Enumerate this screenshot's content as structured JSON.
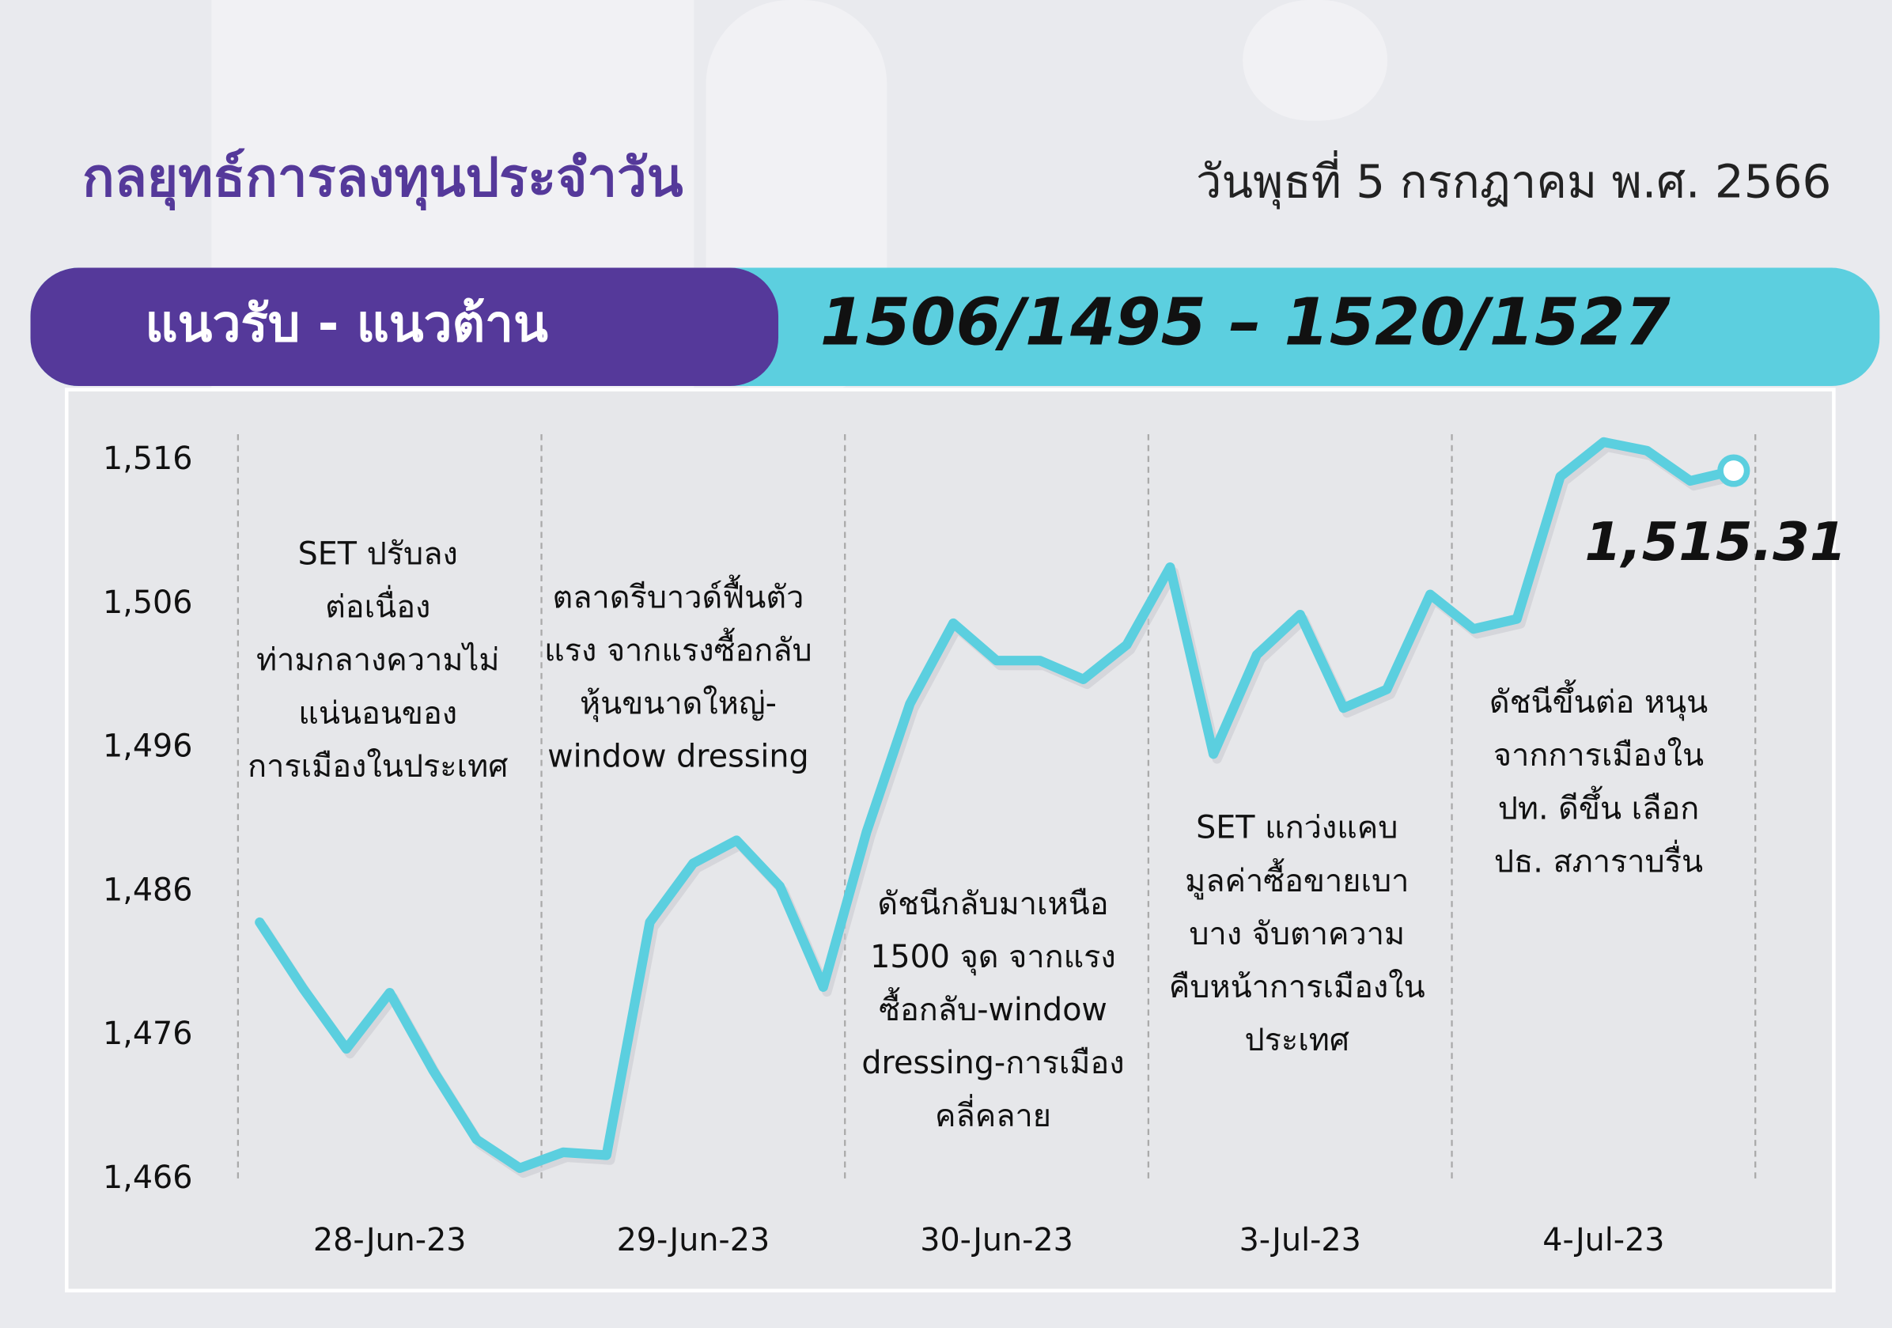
{
  "header": {
    "title": "กลยุทธ์การลงทุนประจำวัน",
    "date": "วันพุธที่ 5 กรกฎาคม พ.ศ. 2566",
    "banner_label": "แนวรับ - แนวต้าน",
    "banner_value": "1506/1495 – 1520/1527"
  },
  "chart_data": {
    "type": "line",
    "color": "#5bcfdf",
    "categories": [
      null,
      null,
      null,
      "28-Jun-23",
      null,
      null,
      null,
      null,
      null,
      null,
      "29-Jun-23",
      null,
      null,
      null,
      null,
      null,
      null,
      "30-Jun-23",
      null,
      null,
      null,
      null,
      null,
      null,
      "3-Jul-23",
      null,
      null,
      null,
      null,
      null,
      null,
      "4-Jul-23",
      null,
      null,
      null
    ],
    "values": [
      1483.9,
      1479.3,
      1475.1,
      1479.0,
      1473.6,
      1468.8,
      1466.8,
      1467.9,
      1467.7,
      1483.9,
      1488.0,
      1489.6,
      1486.4,
      1479.4,
      1490.2,
      1499.1,
      1504.7,
      1502.1,
      1502.1,
      1500.8,
      1503.2,
      1508.6,
      1495.6,
      1502.5,
      1505.3,
      1498.8,
      1500.1,
      1506.7,
      1504.3,
      1505.0,
      1514.9,
      1517.3,
      1516.7,
      1514.6,
      1515.31
    ],
    "value_labels": [
      null,
      null,
      null,
      null,
      null,
      null,
      null,
      null,
      null,
      null,
      null,
      null,
      null,
      null,
      null,
      null,
      null,
      null,
      null,
      null,
      null,
      null,
      null,
      null,
      null,
      null,
      null,
      null,
      null,
      null,
      null,
      null,
      null,
      null,
      "1,515.31"
    ],
    "ylim": [
      1466,
      1516
    ],
    "yticks": [
      {
        "value": 1516,
        "label": "1,516"
      },
      {
        "value": 1506,
        "label": "1,506"
      },
      {
        "value": 1496,
        "label": "1,496"
      },
      {
        "value": 1486,
        "label": "1,486"
      },
      {
        "value": 1476,
        "label": "1,476"
      },
      {
        "value": 1466,
        "label": "1,466"
      }
    ],
    "annotations": [
      [
        "SET ปรับลง",
        "ต่อเนื่อง",
        "ท่ามกลางความไม่",
        "แน่นอนของ",
        "การเมืองในประเทศ"
      ],
      [
        "ตลาดรีบาวด์ฟื้นตัว",
        "แรง จากแรงซื้อกลับ",
        "หุ้นขนาดใหญ่-",
        "window dressing"
      ],
      [
        "ดัชนีกลับมาเหนือ",
        "1500 จุด จากแรง",
        "ซื้อกลับ-window",
        "dressing-การเมือง",
        "คลี่คลาย"
      ],
      [
        "SET แกว่งแคบ",
        "มูลค่าซื้อขายเบา",
        "บาง จับตาความ",
        "คืบหน้าการเมืองใน",
        "ประเทศ"
      ],
      [
        "ดัชนีขึ้นต่อ หนุน",
        "จากการเมืองใน",
        "ปท. ดีขึ้น เลือก",
        "ปธ. สภาราบรื่น"
      ]
    ]
  }
}
